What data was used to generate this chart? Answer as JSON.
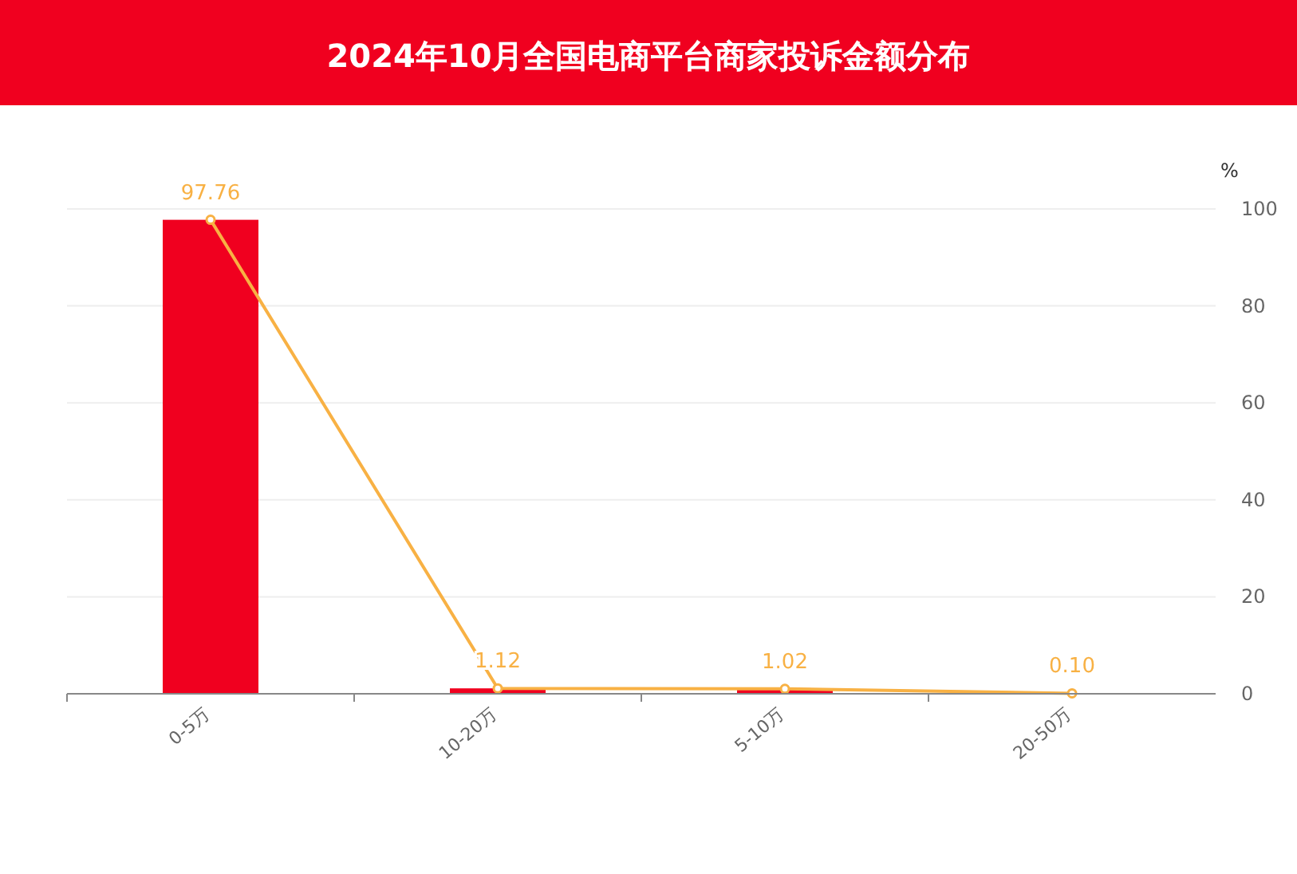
{
  "chart_data": {
    "type": "bar",
    "title": "2024年10月全国电商平台商家投诉金额分布",
    "categories": [
      "0-5万",
      "10-20万",
      "5-10万",
      "20-50万"
    ],
    "y2label": "%",
    "y2lim": [
      0,
      100
    ],
    "y2ticks": [
      0,
      20,
      40,
      60,
      80,
      100
    ],
    "grid": "y",
    "series": [
      {
        "color": "#f0001f",
        "values": [
          97.76,
          1.12,
          1.02,
          0.1
        ],
        "axis": "y2"
      },
      {
        "type": "line",
        "color": "#f8b144",
        "values": [
          97.76,
          1.12,
          1.02,
          0.1
        ],
        "axis": "y2",
        "marker": "circle",
        "value_labels": [
          "97.76",
          "1.12",
          "1.02",
          "0.10"
        ]
      }
    ]
  }
}
